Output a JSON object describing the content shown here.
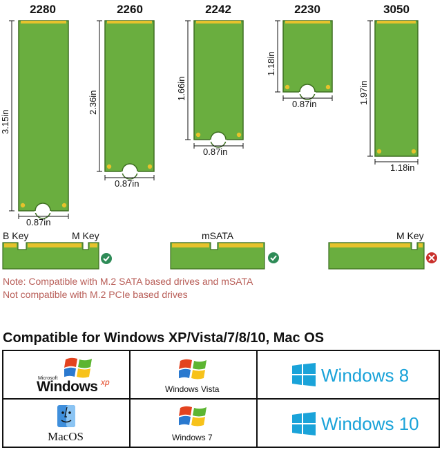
{
  "sizes": [
    {
      "label": "2280",
      "length": "3.15in",
      "width": "0.87in"
    },
    {
      "label": "2260",
      "length": "2.36in",
      "width": "0.87in"
    },
    {
      "label": "2242",
      "length": "1.66in",
      "width": "0.87in"
    },
    {
      "label": "2230",
      "length": "1.18in",
      "width": "0.87in"
    },
    {
      "label": "3050",
      "length": "1.97in",
      "width": "1.18in"
    }
  ],
  "keys": {
    "b_key": "B Key",
    "m_key": "M Key",
    "msata": "mSATA",
    "m_key_only": "M Key"
  },
  "notes": {
    "line1": "Note: Compatible with M.2 SATA based drives and mSATA",
    "line2": "Not compatible with M.2 PCIe based drives"
  },
  "compat_title": "Compatible for Windows XP/Vista/7/8/10, Mac OS",
  "os": {
    "xp_brand": "Microsoft",
    "xp_name": "Windows",
    "xp_suffix": "xp",
    "vista_name": "Windows Vista",
    "win8": "Windows 8",
    "mac": "MacOS",
    "win7": "Windows 7",
    "win10": "Windows 10"
  },
  "colors": {
    "pcb": "#6aae3f",
    "pcb_edge": "#3e6e22",
    "gold": "#e6c22c",
    "check": "#2e8b57",
    "cross": "#c9302c",
    "note": "#b85d57",
    "win_blue": "#1aa3d9"
  }
}
